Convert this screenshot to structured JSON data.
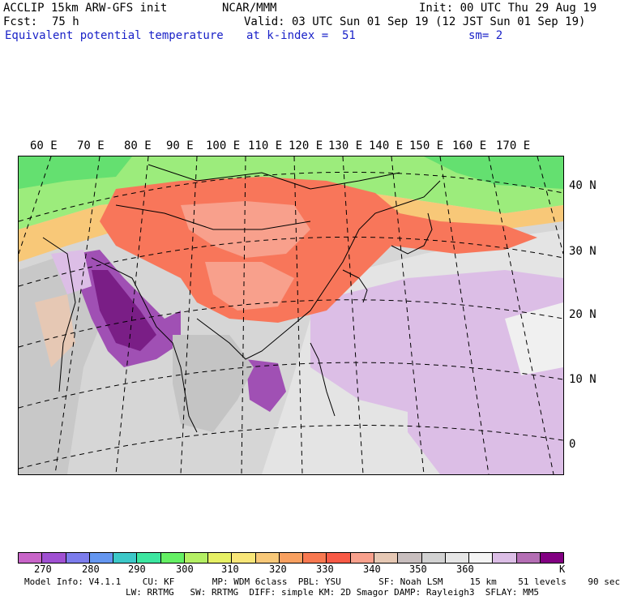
{
  "header": {
    "model": "ACCLIP 15km ARW-GFS init",
    "org": "NCAR/MMM",
    "init": "Init: 00 UTC Thu 29 Aug 19",
    "fcst_label": "Fcst:",
    "fcst_value": "75 h",
    "valid": "Valid: 03 UTC Sun 01 Sep 19 (12 JST Sun 01 Sep 19)",
    "field": "Equivalent potential temperature",
    "level": "at k-index =  51",
    "smoothing": "sm= 2"
  },
  "map": {
    "lon_labels": [
      "60 E",
      "70 E",
      "80 E",
      "90 E",
      "100 E",
      "110 E",
      "120 E",
      "130 E",
      "140 E",
      "150 E",
      "160 E",
      "170 E"
    ],
    "lat_labels": [
      "40 N",
      "30 N",
      "20 N",
      "10 N",
      "0"
    ],
    "colors": {
      "land_border": "#000000",
      "grid": "#000000"
    }
  },
  "colorbar": {
    "units": "K",
    "ticks": [
      "270",
      "280",
      "290",
      "300",
      "310",
      "320",
      "330",
      "340",
      "350",
      "360"
    ],
    "colors": [
      "#c864c8",
      "#a050d2",
      "#7c7cec",
      "#6496f0",
      "#3cc8c8",
      "#3ce6a0",
      "#64f064",
      "#b4f064",
      "#e6f064",
      "#f8e678",
      "#f8c878",
      "#f8a060",
      "#f87850",
      "#f85a46",
      "#f8a08c",
      "#e6c8b4",
      "#c8bebe",
      "#d2d2d2",
      "#e6e6e6",
      "#f4f4f4",
      "#dcbee6",
      "#b46eb4",
      "#820082"
    ]
  },
  "footer": {
    "line1": "Model Info: V4.1.1    CU: KF       MP: WDM 6class  PBL: YSU       SF: Noah LSM     15 km    51 levels    90 sec",
    "line2": "LW: RRTMG   SW: RRTMG  DIFF: simple KM: 2D Smagor DAMP: Rayleigh3  SFLAY: MM5"
  }
}
